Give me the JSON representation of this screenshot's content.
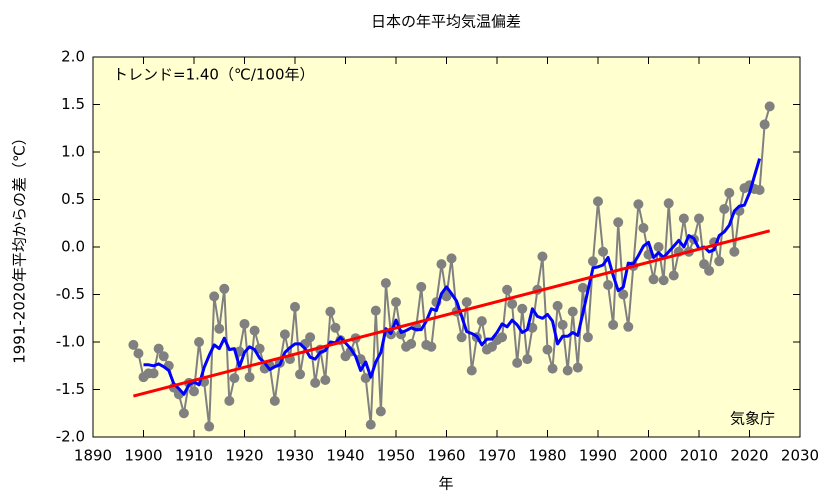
{
  "chart_data": {
    "type": "line",
    "title": "日本の年平均気温偏差",
    "y_label": "1991-2020年平均からの差（℃）",
    "x_label": "年",
    "annotations": [
      "トレンド=1.40（℃/100年）",
      "気象庁"
    ],
    "x": [
      1898,
      1899,
      1900,
      1901,
      1902,
      1903,
      1904,
      1905,
      1906,
      1907,
      1908,
      1909,
      1910,
      1911,
      1912,
      1913,
      1914,
      1915,
      1916,
      1917,
      1918,
      1919,
      1920,
      1921,
      1922,
      1923,
      1924,
      1925,
      1926,
      1927,
      1928,
      1929,
      1930,
      1931,
      1932,
      1933,
      1934,
      1935,
      1936,
      1937,
      1938,
      1939,
      1940,
      1941,
      1942,
      1943,
      1944,
      1945,
      1946,
      1947,
      1948,
      1949,
      1950,
      1951,
      1952,
      1953,
      1954,
      1955,
      1956,
      1957,
      1958,
      1959,
      1960,
      1961,
      1962,
      1963,
      1964,
      1965,
      1966,
      1967,
      1968,
      1969,
      1970,
      1971,
      1972,
      1973,
      1974,
      1975,
      1976,
      1977,
      1978,
      1979,
      1980,
      1981,
      1982,
      1983,
      1984,
      1985,
      1986,
      1987,
      1988,
      1989,
      1990,
      1991,
      1992,
      1993,
      1994,
      1995,
      1996,
      1997,
      1998,
      1999,
      2000,
      2001,
      2002,
      2003,
      2004,
      2005,
      2006,
      2007,
      2008,
      2009,
      2010,
      2011,
      2012,
      2013,
      2014,
      2015,
      2016,
      2017,
      2018,
      2019,
      2020,
      2021,
      2022,
      2023,
      2024
    ],
    "series": [
      {
        "color": "#808080",
        "values": [
          -1.03,
          -1.12,
          -1.37,
          -1.33,
          -1.33,
          -1.07,
          -1.15,
          -1.25,
          -1.48,
          -1.55,
          -1.75,
          -1.43,
          -1.52,
          -1.0,
          -1.42,
          -1.89,
          -0.52,
          -0.86,
          -0.44,
          -1.62,
          -1.38,
          -1.1,
          -0.81,
          -1.37,
          -0.88,
          -1.07,
          -1.28,
          -1.25,
          -1.62,
          -1.22,
          -0.92,
          -1.18,
          -0.63,
          -1.34,
          -1.02,
          -0.95,
          -1.43,
          -1.08,
          -1.4,
          -0.68,
          -0.85,
          -0.98,
          -1.15,
          -1.1,
          -0.96,
          -1.18,
          -1.38,
          -1.87,
          -0.67,
          -1.73,
          -0.38,
          -0.92,
          -0.58,
          -0.92,
          -1.05,
          -1.02,
          -0.84,
          -0.42,
          -1.03,
          -1.05,
          -0.58,
          -0.18,
          -0.52,
          -0.12,
          -0.68,
          -0.95,
          -0.58,
          -1.3,
          -0.95,
          -0.78,
          -1.08,
          -1.05,
          -0.98,
          -0.95,
          -0.45,
          -0.6,
          -1.22,
          -0.65,
          -1.18,
          -0.85,
          -0.45,
          -0.1,
          -1.08,
          -1.28,
          -0.62,
          -0.82,
          -1.3,
          -0.68,
          -1.27,
          -0.43,
          -0.95,
          -0.15,
          0.48,
          -0.05,
          -0.4,
          -0.82,
          0.26,
          -0.5,
          -0.84,
          -0.2,
          0.45,
          0.2,
          -0.08,
          -0.34,
          0.0,
          -0.35,
          0.46,
          -0.3,
          -0.05,
          0.3,
          -0.05,
          0.08,
          0.3,
          -0.18,
          -0.25,
          0.05,
          -0.15,
          0.4,
          0.57,
          -0.05,
          0.38,
          0.62,
          0.65,
          0.61,
          0.6,
          1.29,
          1.48
        ]
      },
      {
        "color": "#0000ff",
        "values": [
          null,
          null,
          -1.24,
          -1.24,
          -1.25,
          -1.23,
          -1.26,
          -1.3,
          -1.44,
          -1.49,
          -1.55,
          -1.45,
          -1.42,
          -1.45,
          -1.27,
          -1.14,
          -1.03,
          -1.07,
          -0.96,
          -1.08,
          -1.07,
          -1.26,
          -1.11,
          -1.05,
          -1.08,
          -1.17,
          -1.22,
          -1.29,
          -1.26,
          -1.24,
          -1.11,
          -1.06,
          -1.02,
          -1.02,
          -1.07,
          -1.16,
          -1.18,
          -1.11,
          -1.09,
          -1.0,
          -1.01,
          -0.95,
          -1.01,
          -1.07,
          -1.15,
          -1.3,
          -1.21,
          -1.37,
          -1.21,
          -1.11,
          -0.86,
          -0.91,
          -0.77,
          -0.9,
          -0.88,
          -0.85,
          -0.87,
          -0.87,
          -0.78,
          -0.65,
          -0.67,
          -0.49,
          -0.42,
          -0.49,
          -0.57,
          -0.73,
          -0.89,
          -0.91,
          -0.94,
          -1.03,
          -0.97,
          -0.97,
          -0.9,
          -0.81,
          -0.84,
          -0.77,
          -0.82,
          -0.9,
          -0.87,
          -0.65,
          -0.73,
          -0.75,
          -0.71,
          -0.78,
          -1.02,
          -0.94,
          -0.94,
          -0.9,
          -0.93,
          -0.7,
          -0.46,
          -0.22,
          -0.21,
          -0.19,
          -0.11,
          -0.3,
          -0.46,
          -0.42,
          -0.17,
          -0.18,
          -0.09,
          0.01,
          0.05,
          -0.11,
          -0.06,
          -0.11,
          -0.05,
          0.01,
          0.07,
          0.0,
          0.12,
          0.09,
          -0.02,
          0.0,
          -0.05,
          -0.03,
          0.12,
          0.16,
          0.23,
          0.38,
          0.43,
          0.44,
          0.57,
          0.75,
          0.93,
          null,
          null
        ]
      },
      {
        "color": "#ff0000",
        "x": [
          1898,
          2024
        ],
        "values": [
          -1.57,
          0.17
        ]
      }
    ],
    "xlim": [
      1890,
      2030
    ],
    "xticks": [
      1890,
      1900,
      1910,
      1920,
      1930,
      1940,
      1950,
      1960,
      1970,
      1980,
      1990,
      2000,
      2010,
      2020,
      2030
    ],
    "ylim": [
      -2,
      2
    ],
    "yticks": [
      {
        "value": -2,
        "label": "-2.0"
      },
      -1.5,
      {
        "value": -1,
        "label": "-1.0"
      },
      -0.5,
      {
        "value": 0,
        "label": "0.0"
      },
      0.5,
      {
        "value": 1,
        "label": "1.0"
      },
      1.5,
      {
        "value": 2,
        "label": "2.0"
      }
    ],
    "background": "#ffffd0",
    "grid": false
  }
}
